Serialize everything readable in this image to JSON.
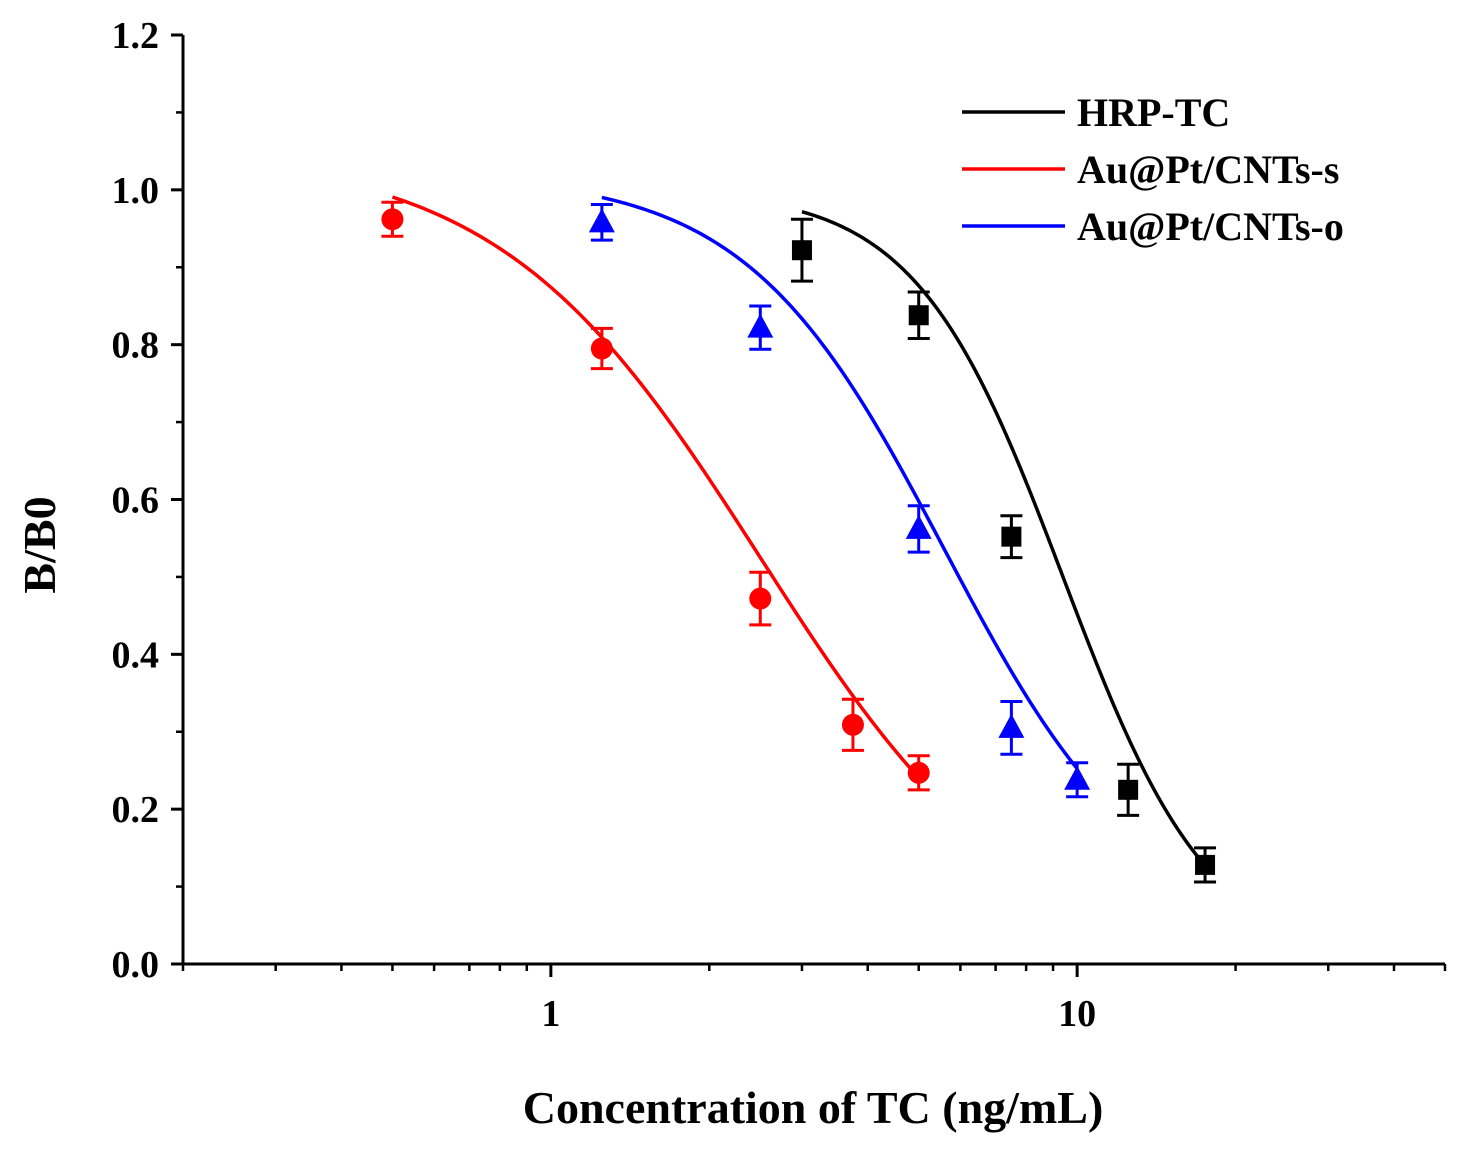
{
  "chart_data": {
    "type": "scatter",
    "title": "",
    "xlabel": "Concentration of TC (ng/mL)",
    "ylabel": "B/B0",
    "xscale": "log",
    "xlim": [
      0.2,
      50
    ],
    "ylim": [
      0.0,
      1.2
    ],
    "x_ticks": [
      {
        "value": 1,
        "label": "1"
      },
      {
        "value": 10,
        "label": "10"
      }
    ],
    "y_ticks": [
      {
        "value": 0.0,
        "label": "0.0"
      },
      {
        "value": 0.2,
        "label": "0.2"
      },
      {
        "value": 0.4,
        "label": "0.4"
      },
      {
        "value": 0.6,
        "label": "0.6"
      },
      {
        "value": 0.8,
        "label": "0.8"
      },
      {
        "value": 1.0,
        "label": "1.0"
      },
      {
        "value": 1.2,
        "label": "1.2"
      }
    ],
    "legend_position": "top-right",
    "series": [
      {
        "name": "HRP-TC",
        "color": "#000000",
        "marker": "square",
        "x": [
          3.0,
          5.0,
          7.5,
          12.5,
          17.5
        ],
        "y": [
          0.922,
          0.838,
          0.552,
          0.225,
          0.128
        ],
        "err": [
          0.04,
          0.03,
          0.027,
          0.033,
          0.022
        ],
        "fit": {
          "top": 1.0,
          "bottom": 0.0,
          "x0": 9.4,
          "hill": 3.1,
          "x_range": [
            3.0,
            17.5
          ]
        }
      },
      {
        "name": "Au@Pt/CNTs-s",
        "color": "#ff0000",
        "marker": "circle",
        "x": [
          0.5,
          1.25,
          2.5,
          3.75,
          5.0
        ],
        "y": [
          0.962,
          0.795,
          0.472,
          0.309,
          0.247
        ],
        "err": [
          0.022,
          0.026,
          0.034,
          0.033,
          0.022
        ],
        "fit": {
          "top": 1.05,
          "bottom": 0.0,
          "x0": 2.5,
          "hill": 1.75,
          "x_range": [
            0.5,
            5.0
          ]
        }
      },
      {
        "name": "Au@Pt/CNTs-o",
        "color": "#0000ff",
        "marker": "triangle",
        "x": [
          1.25,
          2.5,
          5.0,
          7.5,
          10.0
        ],
        "y": [
          0.958,
          0.822,
          0.562,
          0.305,
          0.238
        ],
        "err": [
          0.023,
          0.028,
          0.03,
          0.034,
          0.022
        ],
        "fit": {
          "top": 1.02,
          "bottom": 0.05,
          "x0": 5.6,
          "hill": 2.3,
          "x_range": [
            1.25,
            10.0
          ]
        }
      }
    ]
  }
}
